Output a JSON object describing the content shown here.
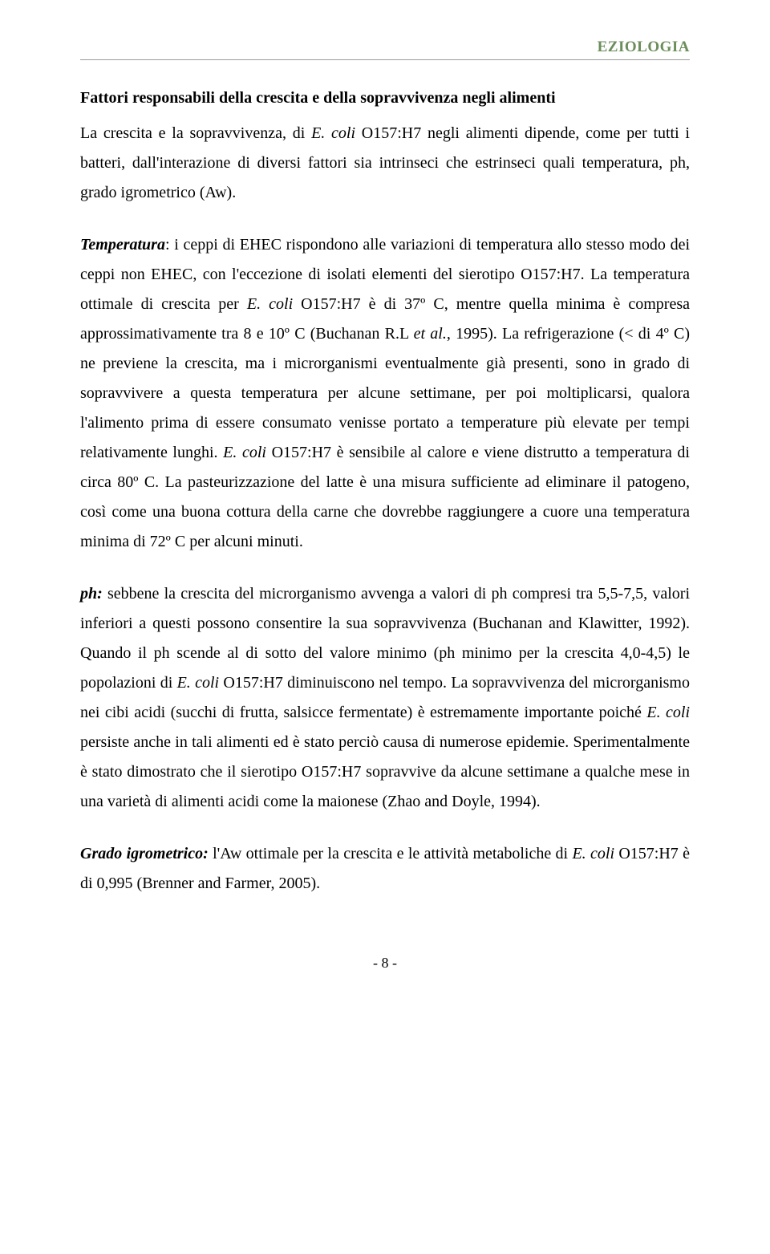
{
  "header": {
    "label": "EZIOLOGIA",
    "color": "#6b8e5a"
  },
  "section_title": "Fattori responsabili della crescita e della sopravvivenza negli alimenti",
  "intro": {
    "t1": "La crescita e la sopravvivenza, di ",
    "t2": "E. coli",
    "t3": " O157:H7 negli alimenti dipende, come per tutti i batteri, dall'interazione di diversi fattori sia intrinseci che estrinseci quali temperatura, ph, grado igrometrico (Aw)."
  },
  "temperatura": {
    "t1": "Temperatura",
    "t2": ": i ceppi di EHEC rispondono alle variazioni di temperatura allo stesso modo dei ceppi non EHEC, con l'eccezione di isolati elementi del sierotipo O157:H7. La temperatura ottimale di crescita per ",
    "t3": "E. coli",
    "t4": " O157:H7 è di 37º C, mentre quella minima è compresa approssimativamente tra 8 e 10º C (Buchanan R.L ",
    "t5": "et al.",
    "t6": ", 1995). La refrigerazione (< di 4º C) ne previene la crescita, ma i microrganismi eventualmente già presenti, sono in grado di sopravvivere a questa temperatura per alcune settimane, per  poi moltiplicarsi, qualora l'alimento prima di essere consumato venisse portato a temperature  più elevate per tempi relativamente lunghi. ",
    "t7": "E. coli",
    "t8": " O157:H7 è sensibile al calore e viene distrutto a temperatura di circa 80º C. La pasteurizzazione del latte è una misura sufficiente ad eliminare il patogeno, così come una buona cottura della carne che dovrebbe raggiungere a cuore una temperatura minima di 72º C per alcuni minuti."
  },
  "ph": {
    "t1": "ph:",
    "t2": " sebbene la crescita del microrganismo avvenga a valori di ph compresi tra 5,5-7,5, valori inferiori a questi possono consentire la sua sopravvivenza (Buchanan and Klawitter, 1992). Quando il ph scende al di sotto del valore minimo (ph minimo per la crescita 4,0-4,5) le popolazioni di ",
    "t3": "E. coli",
    "t4": " O157:H7 diminuiscono nel tempo. La sopravvivenza del microrganismo nei cibi acidi (succhi di frutta, salsicce fermentate) è estremamente importante poiché ",
    "t5": "E. coli",
    "t6": " persiste anche in tali alimenti ed è stato perciò causa di numerose epidemie. Sperimentalmente è stato dimostrato che il sierotipo O157:H7 sopravvive da alcune settimane a qualche mese in una varietà di alimenti acidi come la maionese (Zhao and Doyle, 1994)."
  },
  "igro": {
    "t1": "Grado igrometrico:",
    "t2": " l'Aw ottimale per la crescita e le attività metaboliche di ",
    "t3": "E. coli",
    "t4": " O157:H7 è di 0,995  (Brenner and Farmer, 2005)."
  },
  "page_number": "- 8 -"
}
